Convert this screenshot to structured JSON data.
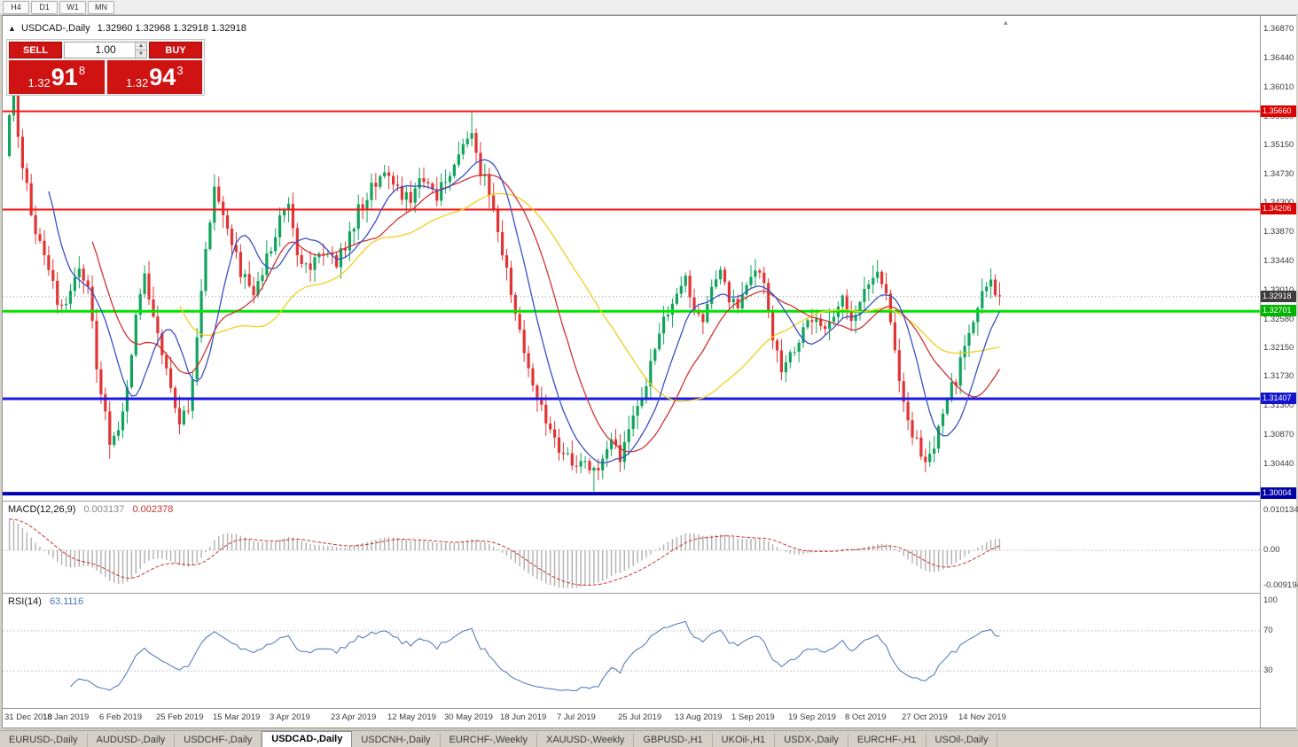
{
  "toolbar": {
    "timeframes": [
      "H4",
      "D1",
      "W1",
      "MN"
    ]
  },
  "window": {
    "collapse_arrow": "▲",
    "title": "USDCAD-,Daily",
    "ohlc": "1.32960 1.32968 1.32918 1.32918",
    "shift_marker": "▴"
  },
  "one_click": {
    "sell_label": "SELL",
    "buy_label": "BUY",
    "volume": "1.00",
    "spin_up": "▲",
    "spin_down": "▼",
    "sell_price": {
      "small": "1.32",
      "big": "91",
      "sup": "8"
    },
    "buy_price": {
      "small": "1.32",
      "big": "94",
      "sup": "3"
    }
  },
  "panes": {
    "macd": {
      "name": "MACD(12,26,9)",
      "value": "0.003137",
      "signal": "0.002378",
      "scale": {
        "top": "0.010134",
        "zero": "0.00",
        "bottom": "-0.009194"
      }
    },
    "rsi": {
      "name": "RSI(14)",
      "value": "63.1116",
      "scale": [
        "100",
        "70",
        "30"
      ]
    }
  },
  "price_scale": {
    "labels": [
      "1.36870",
      "1.36440",
      "1.36010",
      "1.35580",
      "1.35150",
      "1.34730",
      "1.34300",
      "1.33870",
      "1.33440",
      "1.33010",
      "1.32580",
      "1.32150",
      "1.31730",
      "1.31300",
      "1.30870",
      "1.30440",
      "1.30010"
    ],
    "tags": [
      {
        "text": "1.35660",
        "price": 1.3566,
        "bg": "#dd0000"
      },
      {
        "text": "1.34206",
        "price": 1.34206,
        "bg": "#dd0000"
      },
      {
        "text": "1.32918",
        "price": 1.32918,
        "bg": "#3c3c3c"
      },
      {
        "text": "1.32701",
        "price": 1.32701,
        "bg": "#00b400"
      },
      {
        "text": "1.31407",
        "price": 1.31407,
        "bg": "#1414cc"
      },
      {
        "text": "1.30004",
        "price": 1.30004,
        "bg": "#0000a8"
      }
    ]
  },
  "time_axis": [
    {
      "i": 0,
      "label": "31 Dec 2018"
    },
    {
      "i": 14,
      "label": "18 Jan 2019"
    },
    {
      "i": 27,
      "label": "6 Feb 2019"
    },
    {
      "i": 40,
      "label": "25 Feb 2019"
    },
    {
      "i": 53,
      "label": "15 Mar 2019"
    },
    {
      "i": 66,
      "label": "3 Apr 2019"
    },
    {
      "i": 80,
      "label": "23 Apr 2019"
    },
    {
      "i": 93,
      "label": "12 May 2019"
    },
    {
      "i": 106,
      "label": "30 May 2019"
    },
    {
      "i": 119,
      "label": "18 Jun 2019"
    },
    {
      "i": 132,
      "label": "7 Jul 2019"
    },
    {
      "i": 146,
      "label": "25 Jul 2019"
    },
    {
      "i": 159,
      "label": "13 Aug 2019"
    },
    {
      "i": 172,
      "label": "1 Sep 2019"
    },
    {
      "i": 185,
      "label": "19 Sep 2019"
    },
    {
      "i": 198,
      "label": "8 Oct 2019"
    },
    {
      "i": 211,
      "label": "27 Oct 2019"
    },
    {
      "i": 224,
      "label": "14 Nov 2019"
    }
  ],
  "tabs": [
    {
      "label": "EURUSD-,Daily",
      "active": false
    },
    {
      "label": "AUDUSD-,Daily",
      "active": false
    },
    {
      "label": "USDCHF-,Daily",
      "active": false
    },
    {
      "label": "USDCAD-,Daily",
      "active": true
    },
    {
      "label": "USDCNH-,Daily",
      "active": false
    },
    {
      "label": "EURCHF-,Weekly",
      "active": false
    },
    {
      "label": "XAUUSD-,Weekly",
      "active": false
    },
    {
      "label": "GBPUSD-,H1",
      "active": false
    },
    {
      "label": "UKOil-,H1",
      "active": false
    },
    {
      "label": "USDX-,Daily",
      "active": false
    },
    {
      "label": "EURCHF-,H1",
      "active": false
    },
    {
      "label": "USOil-,Daily",
      "active": false
    }
  ],
  "chart_data": {
    "type": "candlestick",
    "symbol": "USDCAD",
    "period": "Daily",
    "num_candles": 228,
    "price_axis": {
      "top": 1.3707,
      "bottom": 1.299
    },
    "close_anchors": [
      [
        0,
        1.356
      ],
      [
        1,
        1.3595
      ],
      [
        3,
        1.348
      ],
      [
        5,
        1.342
      ],
      [
        7,
        1.337
      ],
      [
        9,
        1.333
      ],
      [
        12,
        1.327
      ],
      [
        14,
        1.33
      ],
      [
        16,
        1.333
      ],
      [
        18,
        1.33
      ],
      [
        20,
        1.319
      ],
      [
        23,
        1.3075
      ],
      [
        25,
        1.31
      ],
      [
        27,
        1.316
      ],
      [
        29,
        1.327
      ],
      [
        31,
        1.333
      ],
      [
        33,
        1.326
      ],
      [
        35,
        1.321
      ],
      [
        37,
        1.316
      ],
      [
        39,
        1.3105
      ],
      [
        41,
        1.313
      ],
      [
        43,
        1.323
      ],
      [
        45,
        1.337
      ],
      [
        47,
        1.345
      ],
      [
        49,
        1.342
      ],
      [
        51,
        1.337
      ],
      [
        53,
        1.333
      ],
      [
        56,
        1.33
      ],
      [
        59,
        1.335
      ],
      [
        62,
        1.341
      ],
      [
        64,
        1.343
      ],
      [
        66,
        1.336
      ],
      [
        69,
        1.333
      ],
      [
        72,
        1.336
      ],
      [
        75,
        1.334
      ],
      [
        78,
        1.338
      ],
      [
        80,
        1.342
      ],
      [
        83,
        1.345
      ],
      [
        86,
        1.348
      ],
      [
        89,
        1.345
      ],
      [
        92,
        1.343
      ],
      [
        95,
        1.347
      ],
      [
        98,
        1.344
      ],
      [
        101,
        1.348
      ],
      [
        104,
        1.351
      ],
      [
        106,
        1.354
      ],
      [
        108,
        1.348
      ],
      [
        110,
        1.345
      ],
      [
        113,
        1.336
      ],
      [
        116,
        1.327
      ],
      [
        119,
        1.318
      ],
      [
        122,
        1.313
      ],
      [
        125,
        1.308
      ],
      [
        128,
        1.305
      ],
      [
        131,
        1.3045
      ],
      [
        134,
        1.303
      ],
      [
        136,
        1.306
      ],
      [
        138,
        1.309
      ],
      [
        140,
        1.3055
      ],
      [
        143,
        1.311
      ],
      [
        146,
        1.317
      ],
      [
        149,
        1.324
      ],
      [
        152,
        1.329
      ],
      [
        155,
        1.332
      ],
      [
        157,
        1.328
      ],
      [
        159,
        1.3255
      ],
      [
        161,
        1.33
      ],
      [
        163,
        1.333
      ],
      [
        165,
        1.329
      ],
      [
        167,
        1.327
      ],
      [
        169,
        1.331
      ],
      [
        171,
        1.334
      ],
      [
        173,
        1.332
      ],
      [
        175,
        1.323
      ],
      [
        177,
        1.318
      ],
      [
        179,
        1.32
      ],
      [
        182,
        1.324
      ],
      [
        185,
        1.327
      ],
      [
        187,
        1.324
      ],
      [
        189,
        1.327
      ],
      [
        191,
        1.329
      ],
      [
        193,
        1.325
      ],
      [
        195,
        1.328
      ],
      [
        197,
        1.331
      ],
      [
        199,
        1.333
      ],
      [
        201,
        1.329
      ],
      [
        203,
        1.321
      ],
      [
        205,
        1.314
      ],
      [
        207,
        1.309
      ],
      [
        209,
        1.306
      ],
      [
        211,
        1.305
      ],
      [
        213,
        1.309
      ],
      [
        215,
        1.314
      ],
      [
        217,
        1.317
      ],
      [
        219,
        1.322
      ],
      [
        221,
        1.326
      ],
      [
        223,
        1.329
      ],
      [
        225,
        1.332
      ],
      [
        226,
        1.33
      ],
      [
        227,
        1.32918
      ]
    ],
    "overrides": {
      "high": [
        [
          1,
          1.3605
        ],
        [
          106,
          1.3566
        ],
        [
          225,
          1.3334
        ]
      ],
      "low": [
        [
          23,
          1.3052
        ],
        [
          39,
          1.3088
        ],
        [
          134,
          1.3004
        ],
        [
          211,
          1.304
        ]
      ]
    },
    "noise": 0.0022,
    "wick": 0.0018,
    "seed": 12,
    "colors": {
      "bull": "#10a45c",
      "bear": "#e23434",
      "macd_hist": "#b0b0b0",
      "macd_signal": "#cc3333",
      "rsi": "#4a74b8",
      "current_dotted": "#999999"
    },
    "levels": [
      {
        "price": 1.3566,
        "color": "#ff1111",
        "width": 2
      },
      {
        "price": 1.34206,
        "color": "#ff1111",
        "width": 2
      },
      {
        "price": 1.32701,
        "color": "#00e400",
        "width": 3
      },
      {
        "price": 1.31407,
        "color": "#1a1ae6",
        "width": 3
      },
      {
        "price": 1.30004,
        "color": "#0000b0",
        "width": 4
      }
    ],
    "current_price": 1.32918,
    "moving_averages": [
      {
        "period": 40,
        "color": "#f2cf1d"
      },
      {
        "period": 20,
        "color": "#cf3434"
      },
      {
        "period": 10,
        "color": "#3a50c4"
      }
    ],
    "macd_params": {
      "fast": 12,
      "slow": 26,
      "signal": 9,
      "seed_bias": 0.008
    },
    "rsi_period": 14
  }
}
